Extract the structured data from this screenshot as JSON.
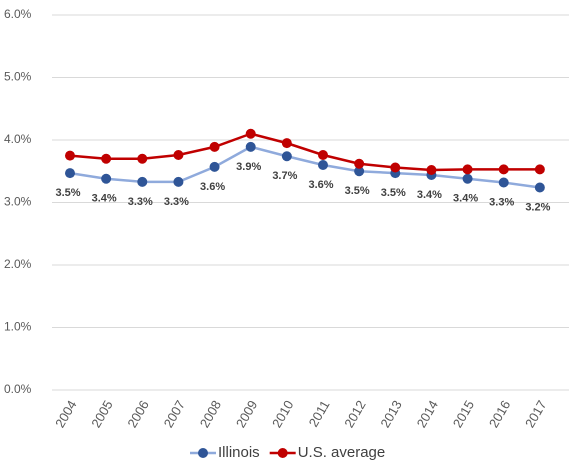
{
  "chart_data": {
    "type": "line",
    "categories": [
      "2004",
      "2005",
      "2006",
      "2007",
      "2008",
      "2009",
      "2010",
      "2011",
      "2012",
      "2013",
      "2014",
      "2015",
      "2016",
      "2017"
    ],
    "series": [
      {
        "name": "Illinois",
        "color": "#2f5597",
        "line_color": "#8faadc",
        "values": [
          3.47,
          3.38,
          3.33,
          3.33,
          3.57,
          3.89,
          3.74,
          3.6,
          3.5,
          3.47,
          3.44,
          3.38,
          3.32,
          3.24
        ],
        "value_labels": [
          "3.5%",
          "3.4%",
          "3.3%",
          "3.3%",
          "3.6%",
          "3.9%",
          "3.7%",
          "3.6%",
          "3.5%",
          "3.5%",
          "3.4%",
          "3.4%",
          "3.3%",
          "3.2%"
        ]
      },
      {
        "name": "U.S. average",
        "color": "#c00000",
        "line_color": "#c00000",
        "values": [
          3.75,
          3.7,
          3.7,
          3.76,
          3.89,
          4.1,
          3.95,
          3.76,
          3.62,
          3.56,
          3.52,
          3.53,
          3.53,
          3.53
        ]
      }
    ],
    "ylim": [
      0,
      6
    ],
    "yticks": [
      {
        "value": 0,
        "label": "0.0%"
      },
      {
        "value": 1,
        "label": "1.0%"
      },
      {
        "value": 2,
        "label": "2.0%"
      },
      {
        "value": 3,
        "label": "3.0%"
      },
      {
        "value": 4,
        "label": "4.0%"
      },
      {
        "value": 5,
        "label": "5.0%"
      },
      {
        "value": 6,
        "label": "6.0%"
      }
    ],
    "grid": true,
    "legend": "bottom"
  }
}
